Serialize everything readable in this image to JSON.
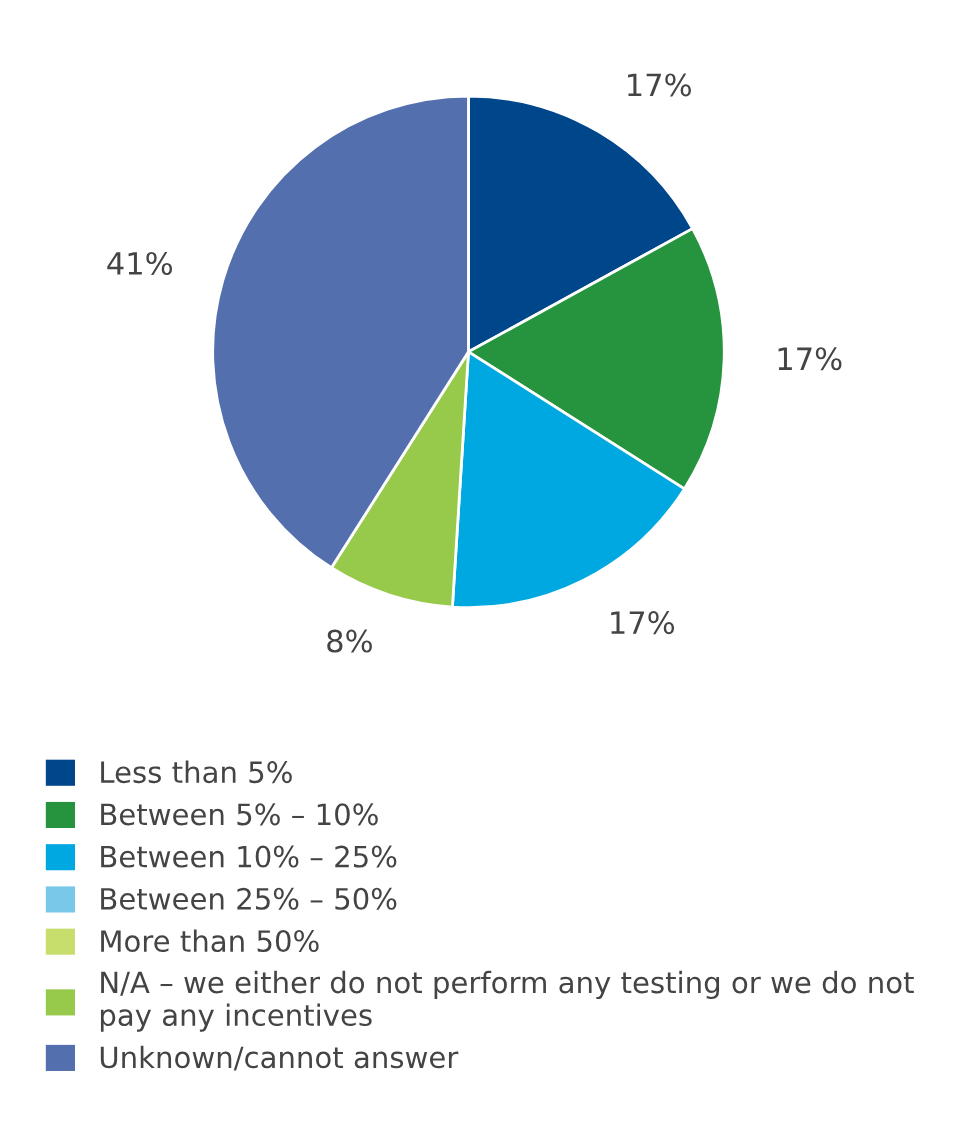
{
  "chart_data": {
    "type": "pie",
    "categories": [
      "Less than 5%",
      "Between 5% – 10%",
      "Between 10% – 25%",
      "Between 25% – 50%",
      "More than 50%",
      "N/A – we either do not perform any testing or we do not\npay any incentives",
      "Unknown/cannot answer"
    ],
    "values": [
      17,
      17,
      17,
      0,
      0,
      8,
      41
    ],
    "value_labels": [
      "17%",
      "17%",
      "17%",
      null,
      null,
      "8%",
      "41%"
    ],
    "colors": [
      "#00468b",
      "#26943f",
      "#00a8e1",
      "#79c8ea",
      "#c7dd6c",
      "#97c94a",
      "#546fae"
    ],
    "legend": "bottom"
  }
}
